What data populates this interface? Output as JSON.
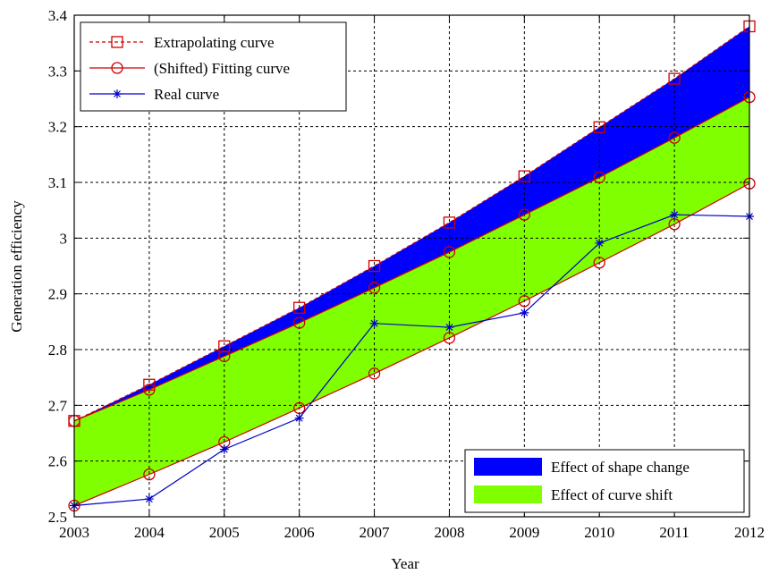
{
  "chart_data": {
    "type": "line",
    "title": "",
    "xlabel": "Year",
    "ylabel": "Generation efficiency",
    "xlim": [
      2003,
      2012
    ],
    "ylim": [
      2.5,
      3.4
    ],
    "grid": true,
    "x_ticks": [
      "2003",
      "2004",
      "2005",
      "2006",
      "2007",
      "2008",
      "2009",
      "2010",
      "2011",
      "2012"
    ],
    "y_ticks": [
      "2.5",
      "2.6",
      "2.7",
      "2.8",
      "2.9",
      "3",
      "3.1",
      "3.2",
      "3.3",
      "3.4"
    ],
    "x": [
      2003,
      2004,
      2005,
      2006,
      2007,
      2008,
      2009,
      2010,
      2011,
      2012
    ],
    "series": [
      {
        "name": "Extrapolating curve",
        "style": "dashed",
        "marker": "square",
        "color": "#cc0000",
        "values": [
          2.672,
          2.737,
          2.806,
          2.875,
          2.95,
          3.028,
          3.111,
          3.199,
          3.286,
          3.38
        ]
      },
      {
        "name": "(Shifted) Fitting curve",
        "style": "solid",
        "marker": "circle",
        "color": "#cc0000",
        "values": [
          2.672,
          2.728,
          2.788,
          2.848,
          2.911,
          2.975,
          3.042,
          3.109,
          3.18,
          3.253
        ]
      },
      {
        "name": "",
        "style": "solid",
        "marker": "circle",
        "color": "#cc0000",
        "values": [
          2.52,
          2.576,
          2.634,
          2.695,
          2.757,
          2.821,
          2.887,
          2.956,
          3.025,
          3.098
        ]
      },
      {
        "name": "Real curve",
        "style": "solid",
        "marker": "star",
        "color": "#0000cc",
        "values": [
          2.52,
          2.532,
          2.621,
          2.677,
          2.847,
          2.84,
          2.866,
          2.991,
          3.042,
          3.039
        ]
      }
    ],
    "areas": [
      {
        "name": "Effect of shape change",
        "color": "#0000ff",
        "between": [
          "Extrapolating curve",
          "(Shifted) Fitting curve"
        ]
      },
      {
        "name": "Effect of curve shift",
        "color": "#80ff00",
        "between_index": [
          1,
          2
        ]
      }
    ],
    "line_legend": {
      "placement": "top-left",
      "entries": [
        "Extrapolating curve",
        "(Shifted) Fitting curve",
        "Real curve"
      ]
    },
    "area_legend": {
      "placement": "bottom-right",
      "entries": [
        "Effect of shape change",
        "Effect of curve shift"
      ]
    }
  }
}
